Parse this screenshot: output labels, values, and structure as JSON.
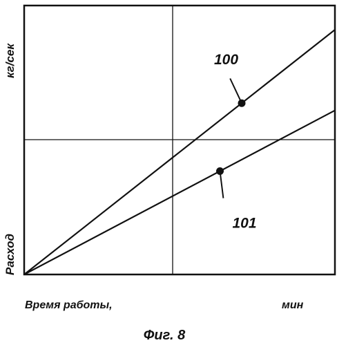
{
  "chart_data": {
    "type": "line",
    "title": "",
    "xlabel": "Время работы,",
    "xunit": "мин",
    "ylabel": "Расход",
    "yunit": "кг/сек",
    "grid": true,
    "series": [
      {
        "name": "100",
        "x": [
          0,
          1
        ],
        "y": [
          0,
          0.91
        ],
        "marker_x": 0.7
      },
      {
        "name": "101",
        "x": [
          0,
          1
        ],
        "y": [
          0,
          0.61
        ],
        "marker_x": 0.63
      }
    ]
  },
  "caption": "Фиг. 8"
}
